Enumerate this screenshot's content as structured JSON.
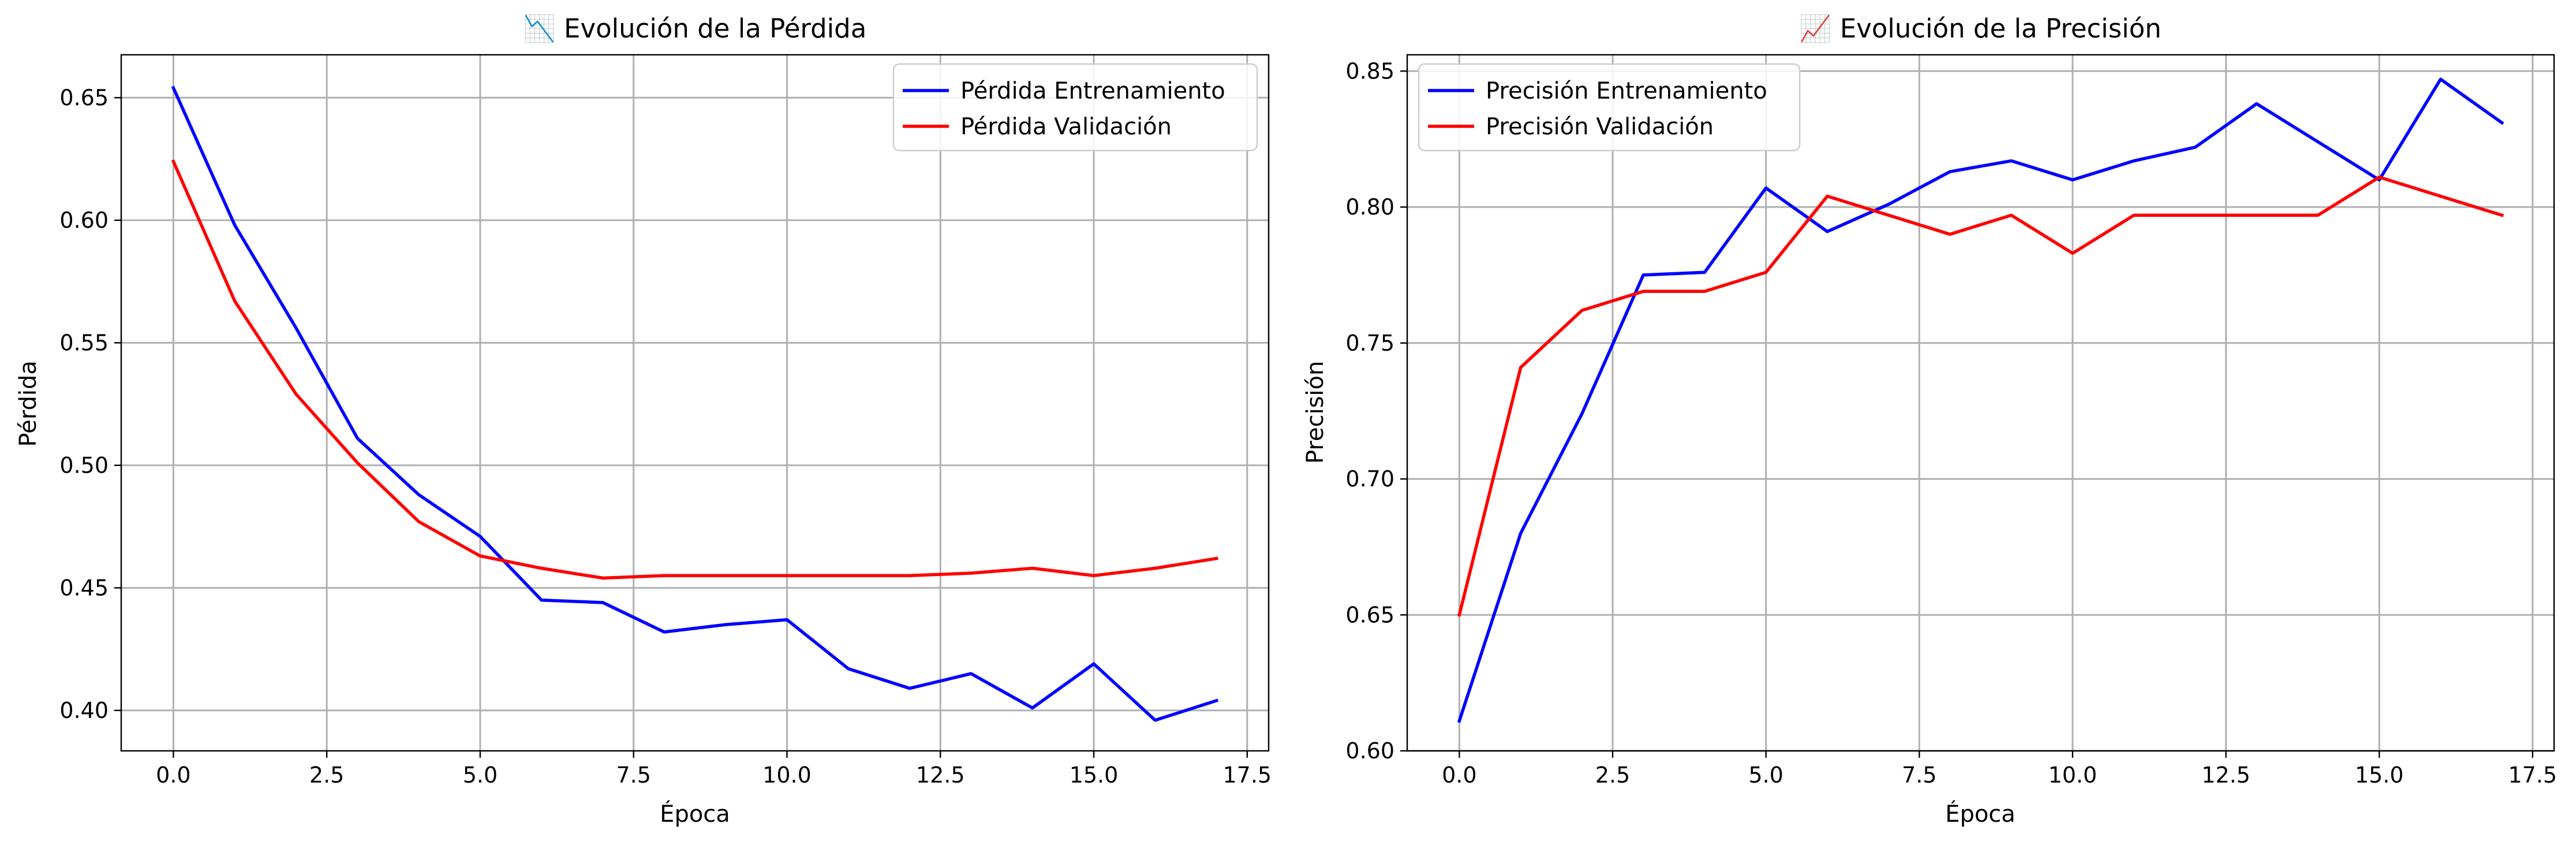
{
  "colors": {
    "train": "#0000ff",
    "val": "#ff0000",
    "grid": "#b0b0b0"
  },
  "chart_data": [
    {
      "type": "line",
      "title": "📉 Evolución de la Pérdida",
      "title_icon": "chart-decreasing-icon",
      "xlabel": "Época",
      "ylabel": "Pérdida",
      "xlim": [
        -0.85,
        17.85
      ],
      "ylim": [
        0.3835,
        0.6675
      ],
      "xticks": [
        0,
        2.5,
        5,
        7.5,
        10,
        12.5,
        15,
        17.5
      ],
      "xtick_labels": [
        "0.0",
        "2.5",
        "5.0",
        "7.5",
        "10.0",
        "12.5",
        "15.0",
        "17.5"
      ],
      "yticks": [
        0.4,
        0.45,
        0.5,
        0.55,
        0.6,
        0.65
      ],
      "ytick_labels": [
        "0.40",
        "0.45",
        "0.50",
        "0.55",
        "0.60",
        "0.65"
      ],
      "grid": true,
      "legend_position": "top-right",
      "x": [
        0,
        1,
        2,
        3,
        4,
        5,
        6,
        7,
        8,
        9,
        10,
        11,
        12,
        13,
        14,
        15,
        16,
        17
      ],
      "series": [
        {
          "name": "Pérdida Entrenamiento",
          "color": "#0000ff",
          "values": [
            0.654,
            0.598,
            0.556,
            0.511,
            0.488,
            0.471,
            0.445,
            0.444,
            0.432,
            0.435,
            0.437,
            0.417,
            0.409,
            0.415,
            0.401,
            0.419,
            0.396,
            0.404
          ]
        },
        {
          "name": "Pérdida Validación",
          "color": "#ff0000",
          "values": [
            0.624,
            0.567,
            0.529,
            0.501,
            0.477,
            0.463,
            0.458,
            0.454,
            0.455,
            0.455,
            0.455,
            0.455,
            0.455,
            0.456,
            0.458,
            0.455,
            0.458,
            0.462
          ]
        }
      ]
    },
    {
      "type": "line",
      "title": "📈 Evolución de la Precisión",
      "title_icon": "chart-increasing-icon",
      "xlabel": "Época",
      "ylabel": "Precisión",
      "xlim": [
        -0.85,
        17.85
      ],
      "ylim": [
        0.6,
        0.856
      ],
      "xticks": [
        0,
        2.5,
        5,
        7.5,
        10,
        12.5,
        15,
        17.5
      ],
      "xtick_labels": [
        "0.0",
        "2.5",
        "5.0",
        "7.5",
        "10.0",
        "12.5",
        "15.0",
        "17.5"
      ],
      "yticks": [
        0.6,
        0.65,
        0.7,
        0.75,
        0.8,
        0.85
      ],
      "ytick_labels": [
        "0.60",
        "0.65",
        "0.70",
        "0.75",
        "0.80",
        "0.85"
      ],
      "grid": true,
      "legend_position": "top-left",
      "x": [
        0,
        1,
        2,
        3,
        4,
        5,
        6,
        7,
        8,
        9,
        10,
        11,
        12,
        13,
        14,
        15,
        16,
        17
      ],
      "series": [
        {
          "name": "Precisión Entrenamiento",
          "color": "#0000ff",
          "values": [
            0.611,
            0.68,
            0.724,
            0.775,
            0.776,
            0.807,
            0.791,
            0.801,
            0.813,
            0.817,
            0.81,
            0.817,
            0.822,
            0.838,
            0.824,
            0.81,
            0.847,
            0.831
          ]
        },
        {
          "name": "Precisión Validación",
          "color": "#ff0000",
          "values": [
            0.65,
            0.741,
            0.762,
            0.769,
            0.769,
            0.776,
            0.804,
            0.797,
            0.79,
            0.797,
            0.783,
            0.797,
            0.797,
            0.797,
            0.797,
            0.811,
            0.804,
            0.797
          ]
        }
      ]
    }
  ]
}
